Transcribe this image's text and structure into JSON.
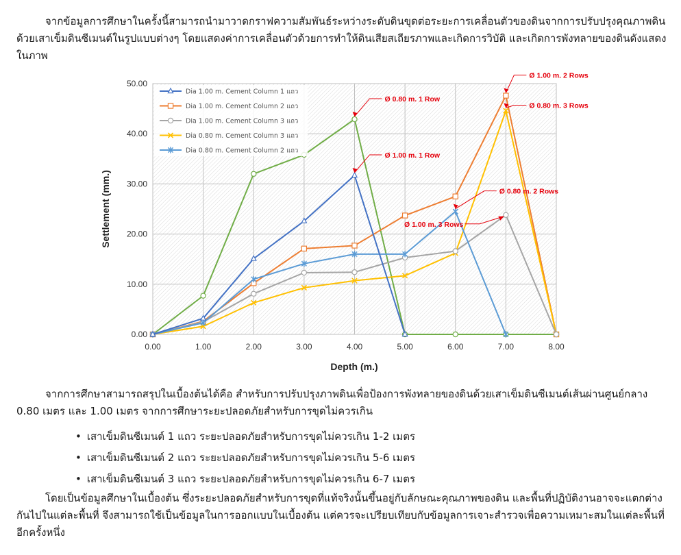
{
  "text": {
    "intro": "จากข้อมูลการศึกษาในครั้งนี้สามารถนำมาวาดกราฟความสัมพันธ์ระหว่างระดับดินขุดต่อระยะการเคลื่อนตัวของดินจากการปรับปรุงคุณภาพดินด้วยเสาเข็มดินซีเมนต์ในรูปแบบต่างๆ โดยแสดงค่าการเคลื่อนตัวด้วยการทำให้ดินเสียสเถียรภาพและเกิดการวิบัติ และเกิดการพังทลายของดินดังแสดงในภาพ",
    "summary": "จากการศึกษาสามารถสรุปในเบื้องต้นได้คือ สำหรับการปรับปรุงภาพดินเพื่อป้องการพังทลายของดินด้วยเสาเข็มดินซีเมนต์เส้นผ่านศูนย์กลาง 0.80 เมตร และ 1.00 เมตร จากการศึกษาระยะปลอดภัยสำหรับการขุดไม่ควรเกิน",
    "bullets": [
      "เสาเข็มดินซีเมนต์ 1 แถว ระยะปลอดภัยสำหรับการขุดไม่ควรเกิน 1-2 เมตร",
      "เสาเข็มดินซีเมนต์ 2 แถว ระยะปลอดภัยสำหรับการขุดไม่ควรเกิน 5-6 เมตร",
      "เสาเข็มดินซีเมนต์ 3 แถว ระยะปลอดภัยสำหรับการขุดไม่ควรเกิน 6-7 เมตร"
    ],
    "closing": "โดยเป็นข้อมูลศึกษาในเบื้องต้น ซึ่งระยะปลอดภัยสำหรับการขุดที่แท้จริงนั้นขึ้นอยู่กับลักษณะคุณภาพของดิน และพื้นที่ปฏิบัติงานอาจจะแตกต่างกันไปในแต่ละพื้นที่ จึงสามารถใช้เป็นข้อมูลในการออกแบบในเบื้องต้น แต่ควรจะเปรียบเทียบกับข้อมูลการเจาะสำรวจเพื่อความเหมาะสมในแต่ละพื้นที่อีกครั้งหนึ่ง"
  },
  "chart_data": {
    "type": "line",
    "xlabel": "Depth (m.)",
    "ylabel": "Settlement (mm.)",
    "xlim": [
      0,
      8
    ],
    "ylim": [
      0,
      50
    ],
    "x_ticks": [
      "0.00",
      "1.00",
      "2.00",
      "3.00",
      "4.00",
      "5.00",
      "6.00",
      "7.00",
      "8.00"
    ],
    "y_ticks": [
      "0.00",
      "10.00",
      "20.00",
      "30.00",
      "40.00",
      "50.00"
    ],
    "grid": true,
    "legend_position": "top-left",
    "series": [
      {
        "name": "Dia 1.00 m. Cement Column 1 แถว",
        "color": "#4472c4",
        "marker": "triangle",
        "x": [
          0,
          1,
          2,
          3,
          4,
          5
        ],
        "y": [
          0,
          3.2,
          15.1,
          22.6,
          31.7,
          0
        ]
      },
      {
        "name": "Dia 1.00 m. Cement Column 2 แถว",
        "color": "#ed7d31",
        "marker": "square",
        "x": [
          0,
          1,
          2,
          3,
          4,
          5,
          6,
          7,
          8
        ],
        "y": [
          0,
          2.6,
          10.2,
          17.1,
          17.7,
          23.7,
          27.5,
          47.6,
          0
        ]
      },
      {
        "name": "Dia 1.00 m. Cement Column 3 แถว",
        "color": "#a5a5a5",
        "marker": "circle",
        "x": [
          0,
          1,
          2,
          3,
          4,
          5,
          6,
          7,
          8
        ],
        "y": [
          0,
          2.5,
          8.1,
          12.3,
          12.4,
          15.3,
          16.6,
          23.8,
          0
        ]
      },
      {
        "name": "Dia 0.80 m. Cement Column 3 แถว",
        "color": "#ffc000",
        "marker": "x",
        "x": [
          0,
          1,
          2,
          3,
          4,
          5,
          6,
          7,
          8
        ],
        "y": [
          0,
          1.6,
          6.3,
          9.3,
          10.7,
          11.7,
          16.2,
          44.6,
          0
        ]
      },
      {
        "name": "Dia 0.80 m. Cement Column 2 แถว",
        "color": "#5b9bd5",
        "marker": "star",
        "x": [
          0,
          1,
          2,
          3,
          4,
          5,
          6,
          7
        ],
        "y": [
          0,
          2.3,
          11.0,
          14.1,
          16.0,
          16.0,
          24.5,
          0
        ]
      },
      {
        "name": "",
        "color": "#70ad47",
        "marker": "circle",
        "x": [
          0,
          1,
          2,
          3,
          4,
          5,
          6,
          7,
          8
        ],
        "y": [
          0,
          7.7,
          32.0,
          35.8,
          42.9,
          0,
          0,
          0,
          0
        ]
      }
    ],
    "annotations": [
      {
        "text": "Ø 0.80 m. 1 Row",
        "x": 4,
        "y": 42.9
      },
      {
        "text": "Ø 1.00 m. 1 Row",
        "x": 4,
        "y": 31.7
      },
      {
        "text": "Ø 1.00 m. 2 Rows",
        "x": 7,
        "y": 47.6
      },
      {
        "text": "Ø 0.80 m. 3 Rows",
        "x": 7,
        "y": 44.6
      },
      {
        "text": "Ø 0.80 m. 2 Rows",
        "x": 6,
        "y": 24.5
      },
      {
        "text": "Ø 1.00 m. 3 Rows",
        "x": 7,
        "y": 23.8
      }
    ]
  }
}
